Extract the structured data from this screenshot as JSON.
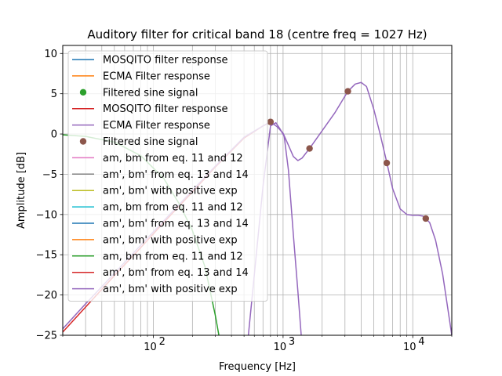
{
  "chart_data": {
    "type": "line",
    "title": "Auditory filter for critical band 18 (centre freq = 1027 Hz)",
    "xlabel": "Frequency [Hz]",
    "ylabel": "Amplitude [dB]",
    "xscale": "log",
    "xlim": [
      20,
      20000
    ],
    "ylim": [
      -25,
      11
    ],
    "grid": true,
    "legend_position": "top-left",
    "x_ticks": [
      {
        "value": 100,
        "base": "10",
        "exp": "2"
      },
      {
        "value": 1000,
        "base": "10",
        "exp": "3"
      },
      {
        "value": 10000,
        "base": "10",
        "exp": "4"
      }
    ],
    "y_ticks": [
      10,
      5,
      0,
      -5,
      -10,
      -15,
      -20,
      -25
    ],
    "series": [
      {
        "name": "MOSQITO filter response",
        "color": "#1f77b4",
        "style": "line"
      },
      {
        "name": "ECMA Filter response",
        "color": "#ff7f0e",
        "style": "line"
      },
      {
        "name": "Filtered sine signal",
        "color": "#2ca02c",
        "style": "marker"
      },
      {
        "name": "MOSQITO filter response",
        "color": "#d62728",
        "style": "line"
      },
      {
        "name": "ECMA Filter response",
        "color": "#9467bd",
        "style": "line"
      },
      {
        "name": "Filtered sine signal",
        "color": "#8c564b",
        "style": "marker"
      },
      {
        "name": "am, bm from eq. 11 and 12",
        "color": "#e377c2",
        "style": "line"
      },
      {
        "name": "am', bm' from eq. 13 and 14",
        "color": "#7f7f7f",
        "style": "line"
      },
      {
        "name": "am', bm' with positive exp",
        "color": "#bcbd22",
        "style": "line"
      },
      {
        "name": "am, bm from eq. 11 and 12",
        "color": "#17becf",
        "style": "line"
      },
      {
        "name": "am', bm' from eq. 13 and 14",
        "color": "#1f77b4",
        "style": "line"
      },
      {
        "name": "am', bm' with positive exp",
        "color": "#ff7f0e",
        "style": "line"
      },
      {
        "name": "am, bm from eq. 11 and 12",
        "color": "#2ca02c",
        "style": "line"
      },
      {
        "name": "am', bm' from eq. 13 and 14",
        "color": "#d62728",
        "style": "line"
      },
      {
        "name": "am', bm' with positive exp",
        "color": "#9467bd",
        "style": "line"
      }
    ],
    "curves": [
      {
        "color": "#d62728",
        "points": [
          [
            20,
            -24.6
          ],
          [
            30,
            -21.5
          ],
          [
            50,
            -17.6
          ],
          [
            80,
            -14.1
          ],
          [
            120,
            -11.0
          ],
          [
            200,
            -7.2
          ],
          [
            300,
            -4.1
          ],
          [
            500,
            -0.5
          ],
          [
            700,
            1.0
          ],
          [
            800,
            1.5
          ]
        ]
      },
      {
        "color": "#9467bd",
        "points": [
          [
            20,
            -24.2
          ],
          [
            30,
            -21.1
          ],
          [
            50,
            -17.3
          ],
          [
            80,
            -13.8
          ],
          [
            120,
            -10.8
          ],
          [
            200,
            -7.0
          ],
          [
            300,
            -4.0
          ],
          [
            500,
            -0.4
          ],
          [
            700,
            1.0
          ],
          [
            800,
            1.5
          ],
          [
            900,
            0.9
          ],
          [
            1000,
            0.1
          ],
          [
            1100,
            -1.4
          ],
          [
            1200,
            -2.8
          ],
          [
            1300,
            -3.3
          ],
          [
            1400,
            -3.0
          ],
          [
            1600,
            -1.8
          ],
          [
            2000,
            0.4
          ],
          [
            2500,
            2.6
          ],
          [
            3160,
            5.3
          ],
          [
            3600,
            6.2
          ],
          [
            4000,
            6.4
          ],
          [
            4400,
            5.9
          ],
          [
            5000,
            3.1
          ],
          [
            5600,
            0.0
          ],
          [
            6300,
            -3.5
          ],
          [
            7000,
            -6.8
          ],
          [
            8000,
            -9.3
          ],
          [
            9000,
            -10.0
          ],
          [
            10000,
            -10.1
          ],
          [
            11000,
            -10.1
          ],
          [
            12000,
            -10.2
          ],
          [
            12600,
            -10.5
          ],
          [
            13500,
            -11.0
          ],
          [
            15000,
            -13.2
          ],
          [
            17000,
            -17.4
          ],
          [
            19000,
            -22.6
          ],
          [
            20000,
            -25.0
          ]
        ]
      },
      {
        "color": "#9467bd",
        "points": [
          [
            540,
            -25.0
          ],
          [
            600,
            -17.5
          ],
          [
            700,
            -6.5
          ],
          [
            800,
            1.0
          ],
          [
            880,
            1.4
          ],
          [
            950,
            0.6
          ],
          [
            1020,
            -0.3
          ],
          [
            1100,
            -4.5
          ],
          [
            1200,
            -12.5
          ],
          [
            1300,
            -19.5
          ],
          [
            1380,
            -25.0
          ]
        ]
      },
      {
        "color": "#2ca02c",
        "points": [
          [
            20,
            -0.1
          ],
          [
            30,
            -0.3
          ],
          [
            50,
            -1.0
          ],
          [
            80,
            -2.7
          ],
          [
            120,
            -5.5
          ],
          [
            160,
            -8.8
          ],
          [
            200,
            -12.0
          ],
          [
            250,
            -16.5
          ],
          [
            300,
            -22.5
          ],
          [
            320,
            -25.0
          ]
        ]
      }
    ],
    "markers": {
      "color": "#8c564b",
      "points": [
        [
          800,
          1.5
        ],
        [
          1600,
          -1.8
        ],
        [
          3160,
          5.3
        ],
        [
          6300,
          -3.6
        ],
        [
          12600,
          -10.5
        ]
      ]
    }
  }
}
